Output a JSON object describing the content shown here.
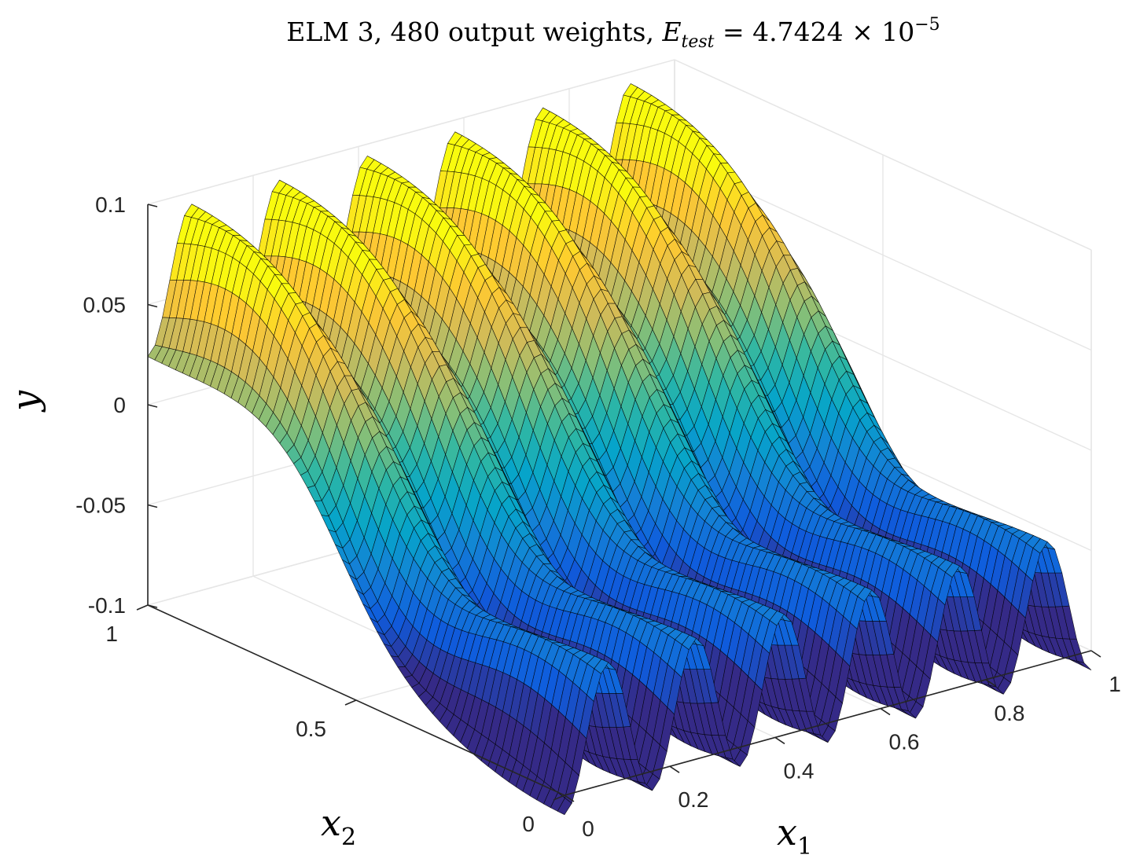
{
  "chart_data": {
    "type": "surface",
    "title_parts": {
      "prefix": "ELM 3, 480 output weights, ",
      "error_symbol": "E",
      "error_subscript": "test",
      "equals": " = 4.7424 × 10",
      "exponent": "−5"
    },
    "xlabel": {
      "symbol": "x",
      "subscript": "1"
    },
    "ylabel": {
      "symbol": "x",
      "subscript": "2"
    },
    "zlabel": "y",
    "x_ticks": [
      "0",
      "0.2",
      "0.4",
      "0.6",
      "0.8",
      "1"
    ],
    "y_ticks": [
      "0",
      "0.5",
      "1"
    ],
    "z_ticks": [
      "-0.1",
      "-0.05",
      "0",
      "0.05",
      "0.1"
    ],
    "xlim": [
      0,
      1
    ],
    "ylim": [
      0,
      1
    ],
    "zlim": [
      -0.1,
      0.1
    ],
    "grid": true,
    "colormap": "parula",
    "mesh_edge_color": "#000000",
    "surface_model": {
      "description_of_shape": "y varies mostly along x2 as a smooth step from about -0.075 at x2=0 to about +0.06 at x2=1, with 6 sharp ridges/troughs along x1",
      "ridges_along_x1": 6,
      "x2_low_value": -0.075,
      "x2_high_value": 0.06,
      "ridge_amplitude": 0.035
    },
    "colors": {
      "parula": [
        "#352a87",
        "#0f5cdd",
        "#1481d6",
        "#06a4ca",
        "#2eb7a4",
        "#87bf77",
        "#d1bb59",
        "#fec832",
        "#f9fb0e"
      ],
      "grid": "#e6e6e6",
      "axis": "#262626"
    }
  }
}
